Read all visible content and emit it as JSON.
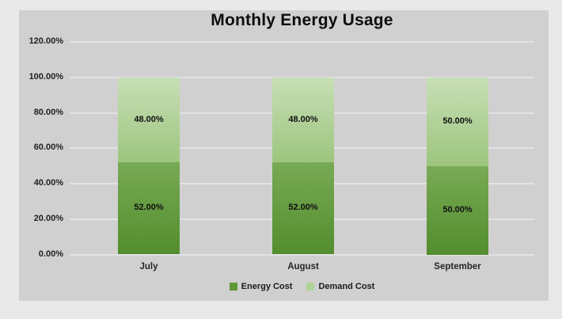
{
  "chart_data": {
    "type": "bar",
    "stacked": true,
    "percent_stacked": true,
    "title": "Monthly Energy Usage",
    "categories": [
      "July",
      "August",
      "September"
    ],
    "series": [
      {
        "name": "Energy Cost",
        "values": [
          52,
          52,
          50
        ],
        "labels": [
          "52.00%",
          "52.00%",
          "50.00%"
        ],
        "color_top": "#78aa55",
        "color_bottom": "#538e2e",
        "legend_color": "#5f9739"
      },
      {
        "name": "Demand Cost",
        "values": [
          48,
          48,
          50
        ],
        "labels": [
          "48.00%",
          "48.00%",
          "50.00%"
        ],
        "color_top": "#c7dfb5",
        "color_bottom": "#9dc57e",
        "legend_color": "#b0d499"
      }
    ],
    "y_axis": {
      "ticks": [
        "0.00%",
        "20.00%",
        "40.00%",
        "60.00%",
        "80.00%",
        "100.00%",
        "120.00%"
      ],
      "min": 0,
      "max": 120,
      "step": 20
    },
    "grid": true,
    "legend_position": "bottom",
    "colors": {
      "panel_background": "#d1d0d0",
      "outer_background": "#e9e9e9",
      "gridline": "#e2e2e7",
      "text": "#1f1f1f"
    }
  }
}
